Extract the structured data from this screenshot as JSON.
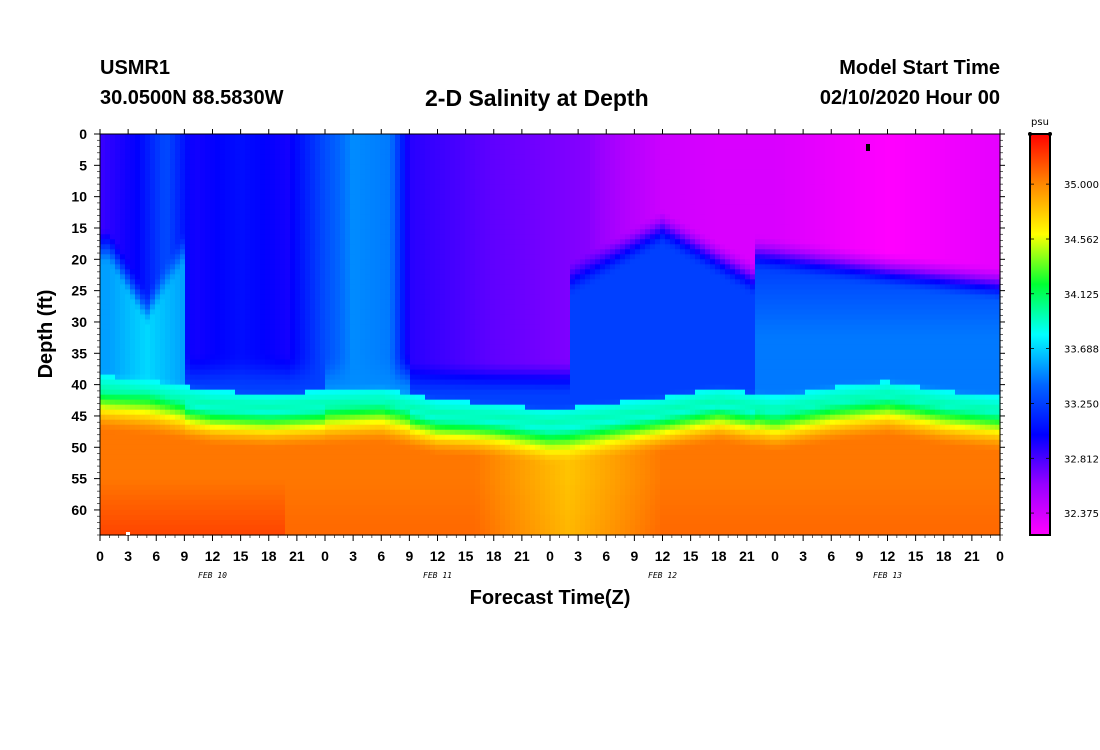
{
  "header": {
    "station": "USMR1",
    "coords": "30.0500N 88.5830W",
    "title": "2-D Salinity at Depth",
    "start_label": "Model Start Time",
    "start_value": "02/10/2020 Hour 00"
  },
  "chart_data": {
    "type": "heatmap",
    "title": "2-D Salinity at Depth",
    "xlabel": "Forecast Time(Z)",
    "ylabel": "Depth (ft)",
    "x_hours": [
      0,
      96
    ],
    "y_depth_ft": [
      0,
      64
    ],
    "x_tick_labels": [
      "0",
      "3",
      "6",
      "9",
      "12",
      "15",
      "18",
      "21",
      "0",
      "3",
      "6",
      "9",
      "12",
      "15",
      "18",
      "21",
      "0",
      "3",
      "6",
      "9",
      "12",
      "15",
      "18",
      "21",
      "0",
      "3",
      "6",
      "9",
      "12",
      "15",
      "18",
      "21",
      "0"
    ],
    "y_tick_labels": [
      "0",
      "5",
      "10",
      "15",
      "20",
      "25",
      "30",
      "35",
      "40",
      "45",
      "50",
      "55",
      "60"
    ],
    "y_tick_values": [
      0,
      5,
      10,
      15,
      20,
      25,
      30,
      35,
      40,
      45,
      50,
      55,
      60
    ],
    "date_labels": [
      {
        "hour": 12,
        "text": "FEB 10"
      },
      {
        "hour": 36,
        "text": "FEB 11"
      },
      {
        "hour": 60,
        "text": "FEB 12"
      },
      {
        "hour": 84,
        "text": "FEB 13"
      }
    ],
    "colorbar": {
      "unit": "psu",
      "range": [
        32.2,
        35.4
      ],
      "tick_labels": [
        "35.000",
        "34.562",
        "34.125",
        "33.688",
        "33.250",
        "32.812",
        "32.375"
      ],
      "tick_values": [
        35.0,
        34.562,
        34.125,
        33.688,
        33.25,
        32.812,
        32.375
      ],
      "colors": [
        "#ff00ff",
        "#9900ff",
        "#0000ff",
        "#0066ff",
        "#00ffff",
        "#00ff33",
        "#ffff00",
        "#ff8800",
        "#ff0000"
      ]
    },
    "halocline_depth_ft": [
      [
        0,
        43.5
      ],
      [
        6,
        44.5
      ],
      [
        12,
        46
      ],
      [
        18,
        46.5
      ],
      [
        24,
        46
      ],
      [
        30,
        45.5
      ],
      [
        36,
        47.5
      ],
      [
        42,
        48
      ],
      [
        48,
        49
      ],
      [
        54,
        48
      ],
      [
        60,
        47
      ],
      [
        66,
        45.5
      ],
      [
        72,
        47
      ],
      [
        78,
        45.5
      ],
      [
        84,
        44.5
      ],
      [
        90,
        46
      ],
      [
        96,
        47
      ]
    ],
    "surface_salinity_profile": [
      [
        0,
        32.85
      ],
      [
        4,
        33.0
      ],
      [
        7,
        33.3
      ],
      [
        10,
        32.95
      ],
      [
        15,
        33.05
      ],
      [
        20,
        32.95
      ],
      [
        24,
        33.3
      ],
      [
        27,
        33.5
      ],
      [
        31,
        33.45
      ],
      [
        33,
        32.9
      ],
      [
        42,
        32.75
      ],
      [
        47,
        32.7
      ],
      [
        52,
        32.65
      ],
      [
        56,
        32.5
      ],
      [
        60,
        32.4
      ],
      [
        66,
        32.35
      ],
      [
        72,
        32.35
      ],
      [
        84,
        32.2
      ],
      [
        96,
        32.3
      ]
    ]
  }
}
